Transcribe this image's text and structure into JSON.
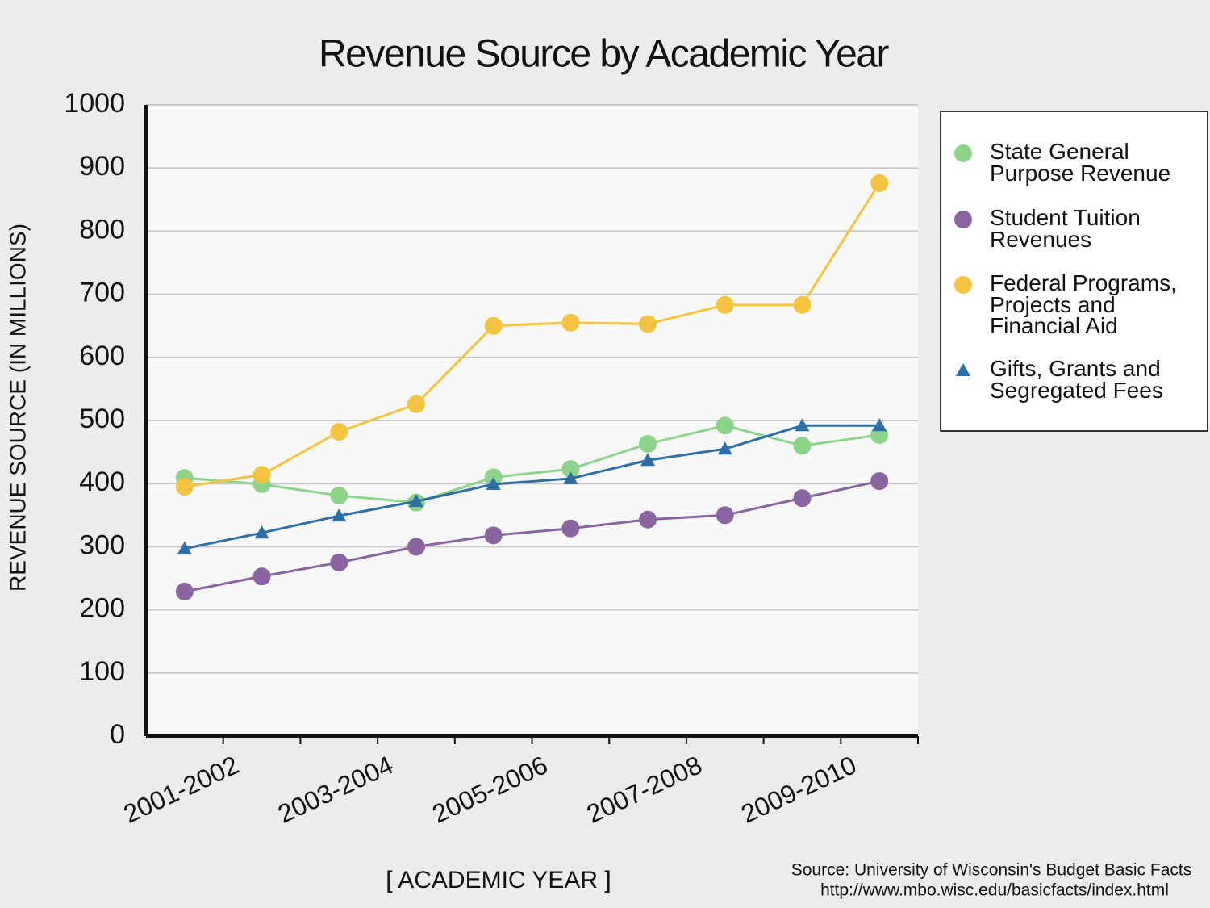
{
  "chart_data": {
    "type": "line",
    "title": "Revenue Source by Academic Year",
    "x_label": "[ ACADEMIC YEAR ]",
    "y_label": "REVENUE SOURCE (IN MILLIONS)",
    "source": [
      "Source: University of Wisconsin's Budget Basic Facts",
      "http://www.mbo.wisc.edu/basicfacts/index.html"
    ],
    "categories": [
      "2001-2002",
      null,
      "2003-2004",
      null,
      "2005-2006",
      null,
      "2007-2008",
      null,
      "2009-2010",
      null
    ],
    "series": [
      {
        "name": "State General Purpose Revenue",
        "color": "#8dd38a",
        "marker": "circle",
        "values": [
          409,
          399,
          381,
          370,
          410,
          423,
          463,
          492,
          460,
          477
        ]
      },
      {
        "name": "Student Tuition Revenues",
        "color": "#8a64a0",
        "marker": "circle",
        "values": [
          229,
          253,
          275,
          300,
          318,
          329,
          343,
          350,
          377,
          404
        ]
      },
      {
        "name": "Federal Programs, Projects and Financial Aid",
        "color": "#f5c342",
        "marker": "circle",
        "values": [
          395,
          414,
          482,
          526,
          650,
          655,
          653,
          683,
          683,
          876
        ]
      },
      {
        "name": "Gifts, Grants and Segregated Fees",
        "color": "#2e6ea6",
        "marker": "triangle",
        "values": [
          297,
          322,
          349,
          372,
          399,
          408,
          437,
          455,
          492,
          492
        ]
      }
    ],
    "ylim": [
      0,
      1000
    ],
    "yticks": [
      0,
      100,
      200,
      300,
      400,
      500,
      600,
      700,
      800,
      900,
      1000
    ],
    "grid": true,
    "legend": "right"
  }
}
